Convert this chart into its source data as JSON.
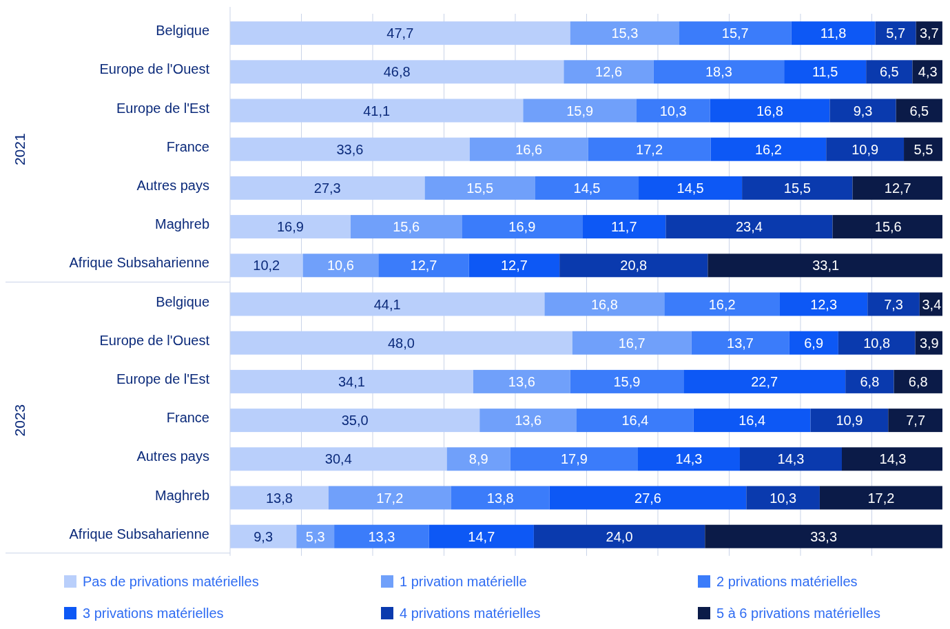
{
  "chart_data": {
    "type": "bar",
    "orientation": "horizontal",
    "stacked": true,
    "grid": "x",
    "legend": "bottom",
    "tick_labels": "y",
    "categories": [
      "Belgique",
      "Europe de l'Ouest",
      "Europe de l'Est",
      "France",
      "Autres pays",
      "Maghreb",
      "Afrique Subsaharienne",
      "Belgique",
      "Europe de l'Ouest",
      "Europe de l'Est",
      "France",
      "Autres pays",
      "Maghreb",
      "Afrique Subsaharienne"
    ],
    "annotations": [
      "2021",
      "2023"
    ],
    "series": [
      {
        "name": "Pas de privations matérielles",
        "color": "#b9cffb",
        "values": [
          47.7,
          46.8,
          41.1,
          33.6,
          27.3,
          16.9,
          10.2,
          44.1,
          48.0,
          34.1,
          35.0,
          30.4,
          13.8,
          9.3
        ],
        "value_labels": [
          "47,7",
          "46,8",
          "41,1",
          "33,6",
          "27,3",
          "16,9",
          "10,2",
          "44,1",
          "48,0",
          "34,1",
          "35,0",
          "30,4",
          "13,8",
          "9,3"
        ]
      },
      {
        "name": "1 privation matérielle",
        "color": "#70a0fa",
        "values": [
          15.3,
          12.6,
          15.9,
          16.6,
          15.5,
          15.6,
          10.6,
          16.8,
          16.7,
          13.6,
          13.6,
          8.9,
          17.2,
          5.3
        ],
        "value_labels": [
          "15,3",
          "12,6",
          "15,9",
          "16,6",
          "15,5",
          "15,6",
          "10,6",
          "16,8",
          "16,7",
          "13,6",
          "13,6",
          "8,9",
          "17,2",
          "5,3"
        ]
      },
      {
        "name": "2 privations matérielles",
        "color": "#3b7cfa",
        "values": [
          15.7,
          18.3,
          10.3,
          17.2,
          14.5,
          16.9,
          12.7,
          16.2,
          13.7,
          15.9,
          16.4,
          17.9,
          13.8,
          13.3
        ],
        "value_labels": [
          "15,7",
          "18,3",
          "10,3",
          "17,2",
          "14,5",
          "16,9",
          "12,7",
          "16,2",
          "13,7",
          "15,9",
          "16,4",
          "17,9",
          "13,8",
          "13,3"
        ]
      },
      {
        "name": "3 privations matérielles",
        "color": "#0d58f5",
        "values": [
          11.8,
          11.5,
          16.8,
          16.2,
          14.5,
          11.7,
          12.7,
          12.3,
          6.9,
          22.7,
          16.4,
          14.3,
          27.6,
          14.7
        ],
        "value_labels": [
          "11,8",
          "11,5",
          "16,8",
          "16,2",
          "14,5",
          "11,7",
          "12,7",
          "12,3",
          "6,9",
          "22,7",
          "16,4",
          "14,3",
          "27,6",
          "14,7"
        ]
      },
      {
        "name": "4 privations matérielles",
        "color": "#0a3aae",
        "values": [
          5.7,
          6.5,
          9.3,
          10.9,
          15.5,
          23.4,
          20.8,
          7.3,
          10.8,
          6.8,
          10.9,
          14.3,
          10.3,
          24.0
        ],
        "value_labels": [
          "5,7",
          "6,5",
          "9,3",
          "10,9",
          "15,5",
          "23,4",
          "20,8",
          "7,3",
          "10,8",
          "6,8",
          "10,9",
          "14,3",
          "10,3",
          "24,0"
        ]
      },
      {
        "name": "5 à 6 privations matérielles",
        "color": "#0b1b48",
        "values": [
          3.7,
          4.3,
          6.5,
          5.5,
          12.7,
          15.6,
          33.1,
          3.4,
          3.9,
          6.8,
          7.7,
          14.3,
          17.2,
          33.3
        ],
        "value_labels": [
          "3,7",
          "4,3",
          "6,5",
          "5,5",
          "12,7",
          "15,6",
          "33,1",
          "3,4",
          "3,9",
          "6,8",
          "7,7",
          "14,3",
          "17,2",
          "33,3"
        ]
      }
    ]
  }
}
